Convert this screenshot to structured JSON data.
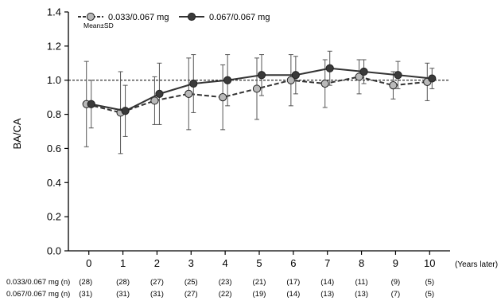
{
  "chart_data": {
    "type": "line",
    "ylabel": "BA/CA",
    "xlabel": "(Years later)",
    "x": [
      0,
      1,
      2,
      3,
      4,
      5,
      6,
      7,
      8,
      9,
      10
    ],
    "xlim": [
      -0.6,
      10.6
    ],
    "ylim": [
      0.0,
      1.4
    ],
    "yticks": [
      "0.0",
      "0.2",
      "0.4",
      "0.6",
      "0.8",
      "1.0",
      "1.2",
      "1.4"
    ],
    "reference_line": 1.0,
    "note": "Mean±SD",
    "legend_position": "top-left",
    "series": [
      {
        "name": "0.033/0.067 mg",
        "line_style": "dashed",
        "marker_color": "#b9b9b9",
        "mean": [
          0.86,
          0.81,
          0.88,
          0.92,
          0.9,
          0.95,
          1.0,
          0.98,
          1.02,
          0.97,
          0.99
        ],
        "sd": [
          0.25,
          0.24,
          0.14,
          0.21,
          0.19,
          0.18,
          0.15,
          0.14,
          0.1,
          0.08,
          0.11
        ],
        "n": [
          "(28)",
          "(28)",
          "(27)",
          "(25)",
          "(23)",
          "(21)",
          "(17)",
          "(14)",
          "(11)",
          "(9)",
          "(5)"
        ]
      },
      {
        "name": "0.067/0.067 mg",
        "line_style": "solid",
        "marker_color": "#3a3a3a",
        "mean": [
          0.86,
          0.82,
          0.92,
          0.98,
          1.0,
          1.03,
          1.03,
          1.07,
          1.05,
          1.03,
          1.01
        ],
        "sd": [
          0.14,
          0.15,
          0.18,
          0.17,
          0.15,
          0.12,
          0.11,
          0.1,
          0.07,
          0.08,
          0.06
        ],
        "n": [
          "(31)",
          "(31)",
          "(31)",
          "(27)",
          "(22)",
          "(19)",
          "(14)",
          "(13)",
          "(13)",
          "(7)",
          "(5)"
        ]
      }
    ]
  },
  "table": {
    "row1_label": "0.033/0.067 mg (n)",
    "row2_label": "0.067/0.067 mg (n)"
  }
}
